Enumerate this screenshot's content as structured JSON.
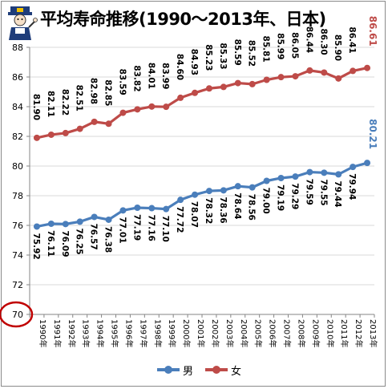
{
  "title": "平均寿命推移(1990～2013年、日本)",
  "colors": {
    "male": "#4a7ebb",
    "female": "#be4b48",
    "grid": "#d9d9d9",
    "axis": "#868686",
    "highlight": "#c00000"
  },
  "legend": {
    "male": "男",
    "female": "女"
  },
  "chart_data": {
    "type": "line",
    "title": "平均寿命推移(1990～2013年、日本)",
    "xlabel": "",
    "ylabel": "",
    "ylim": [
      70,
      88
    ],
    "yticks": [
      "70",
      "72",
      "74",
      "76",
      "78",
      "80",
      "82",
      "84",
      "86",
      "88"
    ],
    "grid": true,
    "legend_position": "bottom",
    "categories": [
      "1990年",
      "1991年",
      "1992年",
      "1993年",
      "1994年",
      "1995年",
      "1996年",
      "1997年",
      "1998年",
      "1999年",
      "2000年",
      "2001年",
      "2002年",
      "2003年",
      "2004年",
      "2005年",
      "2006年",
      "2007年",
      "2008年",
      "2009年",
      "2010年",
      "2011年",
      "2012年",
      "2013年"
    ],
    "series": [
      {
        "name": "男",
        "key": "male",
        "values": [
          75.92,
          76.11,
          76.09,
          76.25,
          76.57,
          76.38,
          77.01,
          77.19,
          77.16,
          77.1,
          77.72,
          78.07,
          78.32,
          78.36,
          78.64,
          78.56,
          79.0,
          79.19,
          79.29,
          79.59,
          79.55,
          79.44,
          79.94,
          80.21
        ],
        "labels": [
          "75.92",
          "76.11",
          "76.09",
          "76.25",
          "76.57",
          "76.38",
          "77.01",
          "77.19",
          "77.16",
          "77.10",
          "77.72",
          "78.07",
          "78.32",
          "78.36",
          "78.64",
          "78.56",
          "79.00",
          "79.19",
          "79.29",
          "79.59",
          "79.55",
          "79.44",
          "79.94",
          "80.21"
        ]
      },
      {
        "name": "女",
        "key": "female",
        "values": [
          81.9,
          82.11,
          82.22,
          82.51,
          82.98,
          82.85,
          83.59,
          83.82,
          84.01,
          83.99,
          84.6,
          84.93,
          85.23,
          85.33,
          85.59,
          85.52,
          85.81,
          85.99,
          86.05,
          86.44,
          86.3,
          85.9,
          86.41,
          86.61
        ],
        "labels": [
          "81.90",
          "82.11",
          "82.22",
          "82.51",
          "82.98",
          "82.85",
          "83.59",
          "83.82",
          "84.01",
          "83.99",
          "84.60",
          "84.93",
          "85.23",
          "85.33",
          "85.59",
          "85.52",
          "85.81",
          "85.99",
          "86.05",
          "86.44",
          "86.30",
          "85.90",
          "86.41",
          "86.61"
        ]
      }
    ],
    "annotations": [
      {
        "type": "circle",
        "target": "y-tick-70"
      }
    ]
  }
}
